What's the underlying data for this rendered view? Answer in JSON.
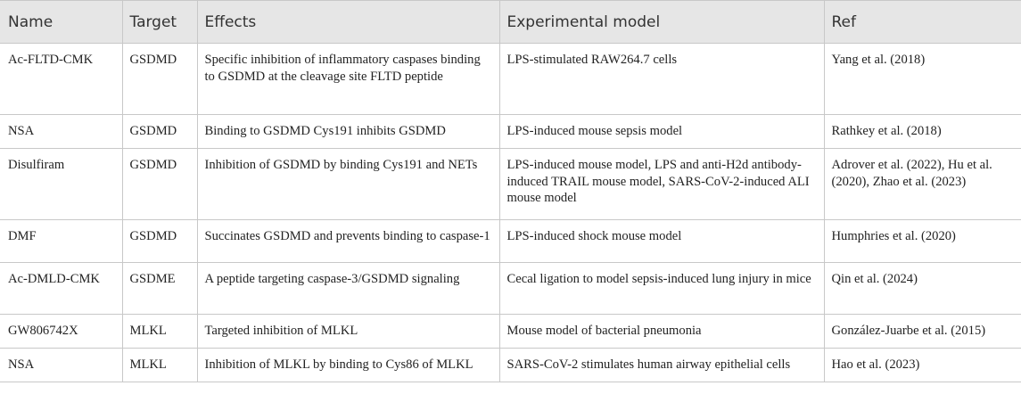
{
  "table": {
    "headers": [
      "Name",
      "Target",
      "Effects",
      "Experimental model",
      "Ref"
    ],
    "rows": [
      {
        "name": "Ac-FLTD-CMK",
        "target": "GSDMD",
        "effects": "Specific inhibition of inflammatory caspases binding to GSDMD at the cleavage site FLTD peptide",
        "model": "LPS-stimulated RAW264.7 cells",
        "ref": "Yang et al. (2018)"
      },
      {
        "name": "NSA",
        "target": "GSDMD",
        "effects": "Binding to GSDMD Cys191 inhibits GSDMD",
        "model": "LPS-induced mouse sepsis model",
        "ref": "Rathkey et al. (2018)"
      },
      {
        "name": "Disulfiram",
        "target": "GSDMD",
        "effects": "Inhibition of GSDMD by binding Cys191 and NETs",
        "model": "LPS-induced mouse model, LPS and anti-H2d antibody-induced TRAIL mouse model, SARS-CoV-2-induced ALI mouse model",
        "ref": "Adrover et al. (2022), Hu et al. (2020), Zhao et al. (2023)"
      },
      {
        "name": "DMF",
        "target": "GSDMD",
        "effects": "Succinates GSDMD and prevents binding to caspase-1",
        "model": "LPS-induced shock mouse model",
        "ref": "Humphries et al. (2020)"
      },
      {
        "name": "Ac-DMLD-CMK",
        "target": "GSDME",
        "effects": "A peptide targeting caspase-3/GSDMD signaling",
        "model": "Cecal ligation to model sepsis-induced lung injury in mice",
        "ref": "Qin et al. (2024)"
      },
      {
        "name": "GW806742X",
        "target": "MLKL",
        "effects": "Targeted inhibition of MLKL",
        "model": "Mouse model of bacterial pneumonia",
        "ref": "González-Juarbe et al. (2015)"
      },
      {
        "name": "NSA",
        "target": "MLKL",
        "effects": "Inhibition of MLKL by binding to Cys86 of MLKL",
        "model": "SARS-CoV-2 stimulates human airway epithelial cells",
        "ref": "Hao et al. (2023)"
      }
    ]
  }
}
